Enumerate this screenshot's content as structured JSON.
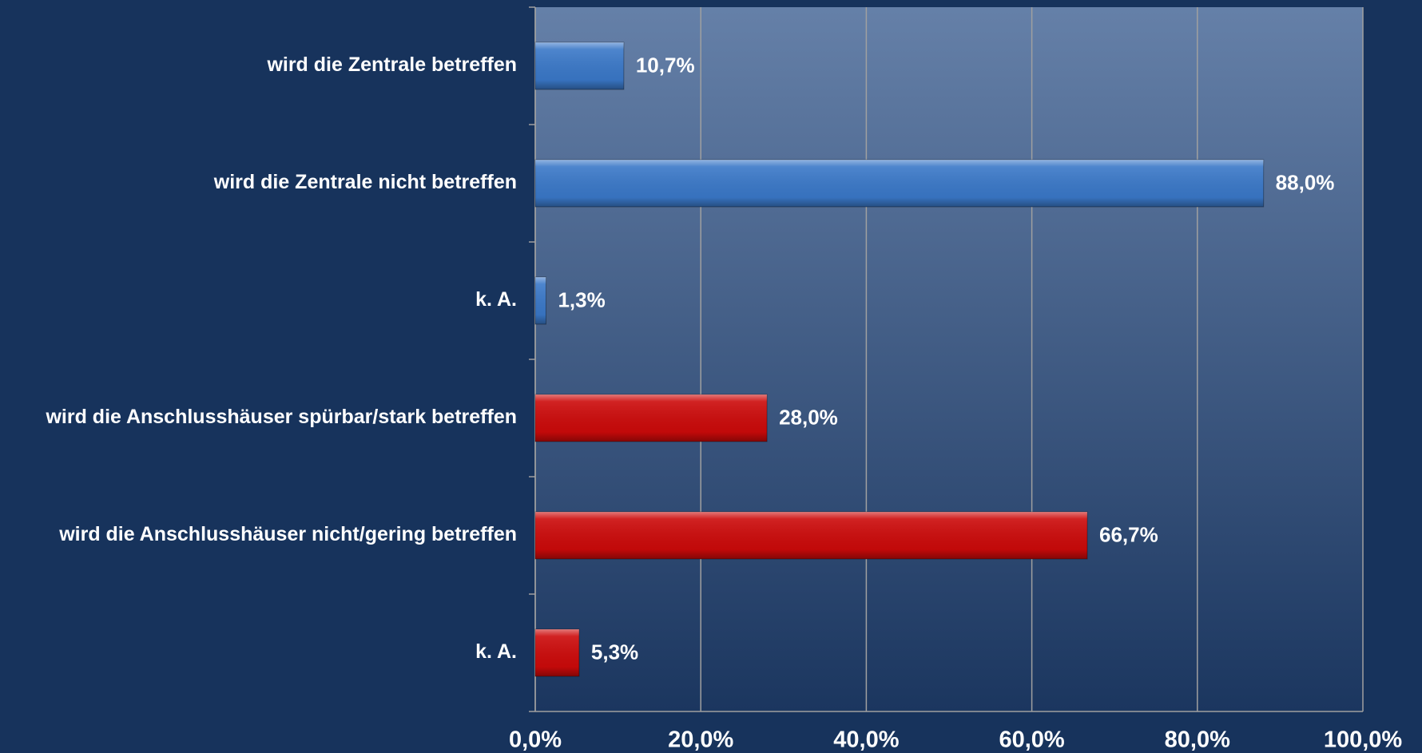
{
  "chart_data": {
    "type": "bar",
    "orientation": "horizontal",
    "categories": [
      "wird die Zentrale betreffen",
      "wird die Zentrale nicht betreffen",
      "k. A.",
      "wird die Anschlusshäuser spürbar/stark betreffen",
      "wird die Anschlusshäuser nicht/gering betreffen",
      "k. A."
    ],
    "values": [
      10.7,
      88.0,
      1.3,
      28.0,
      66.7,
      5.3
    ],
    "value_labels": [
      "10,7%",
      "88,0%",
      "1,3%",
      "28,0%",
      "66,7%",
      "5,3%"
    ],
    "colors": [
      "#3a78c8",
      "#3a78c8",
      "#3a78c8",
      "#cc0a0a",
      "#cc0a0a",
      "#cc0a0a"
    ],
    "xlim": [
      0,
      100
    ],
    "xticks": [
      {
        "value": 0,
        "label": "0,0%"
      },
      {
        "value": 20,
        "label": "20,0%"
      },
      {
        "value": 40,
        "label": "40,0%"
      },
      {
        "value": 60,
        "label": "60,0%"
      },
      {
        "value": 80,
        "label": "80,0%"
      },
      {
        "value": 100,
        "label": "100,0%"
      }
    ],
    "grid": true
  }
}
